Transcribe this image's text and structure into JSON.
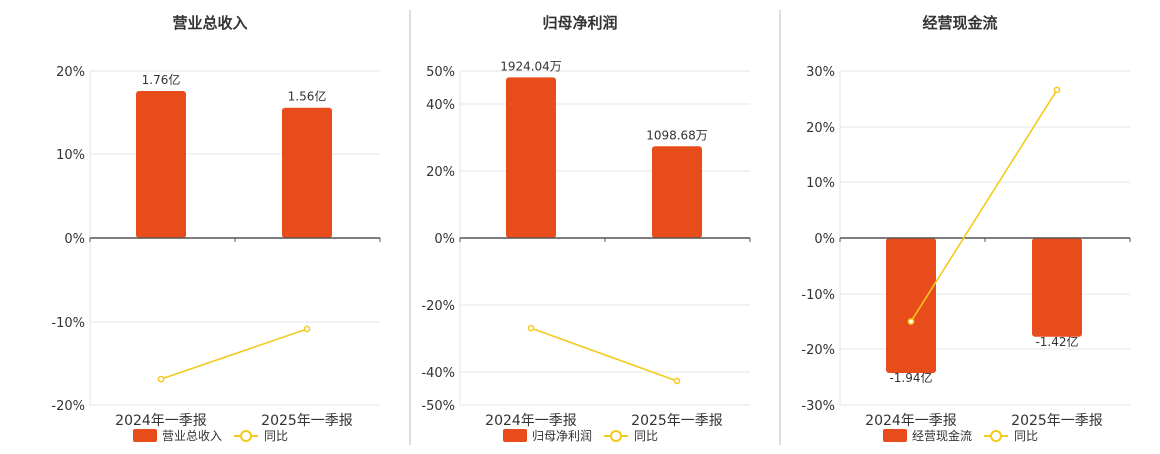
{
  "chart_data": [
    {
      "type": "bar+line",
      "title": "营业总收入",
      "categories": [
        "2024年一季报",
        "2025年一季报"
      ],
      "bar_series": {
        "name": "营业总收入",
        "values": [
          1.76,
          1.56
        ],
        "unit": "亿",
        "labels": [
          "1.76亿",
          "1.56亿"
        ]
      },
      "line_series": {
        "name": "同比",
        "values": [
          -16.9,
          -10.9
        ],
        "unit": "%"
      },
      "y_ticks": [
        "20%",
        "10%",
        "0%",
        "-10%",
        "-20%"
      ],
      "ylim": [
        -20,
        20
      ],
      "bar_ylim": [
        -2.0,
        2.0
      ],
      "legend": "bottom",
      "grid": true
    },
    {
      "type": "bar+line",
      "title": "归母净利润",
      "categories": [
        "2024年一季报",
        "2025年一季报"
      ],
      "bar_series": {
        "name": "归母净利润",
        "values": [
          1924.04,
          1098.68
        ],
        "unit": "万",
        "labels": [
          "1924.04万",
          "1098.68万"
        ]
      },
      "line_series": {
        "name": "同比",
        "values": [
          -27,
          -42.8
        ],
        "unit": "%"
      },
      "y_ticks": [
        "50%",
        "40%",
        "20%",
        "0%",
        "-20%",
        "-40%",
        "-50%"
      ],
      "ylim": [
        -50,
        50
      ],
      "bar_ylim": [
        -2000,
        2000
      ],
      "legend": "bottom",
      "grid": true
    },
    {
      "type": "bar+line",
      "title": "经营现金流",
      "categories": [
        "2024年一季报",
        "2025年一季报"
      ],
      "bar_series": {
        "name": "经营现金流",
        "values": [
          -1.94,
          -1.42
        ],
        "unit": "亿",
        "labels": [
          "-1.94亿",
          "-1.42亿"
        ]
      },
      "line_series": {
        "name": "同比",
        "values": [
          -15,
          26.6
        ],
        "unit": "%"
      },
      "y_ticks": [
        "30%",
        "20%",
        "10%",
        "0%",
        "-10%",
        "-20%",
        "-30%"
      ],
      "ylim": [
        -30,
        30
      ],
      "bar_ylim": [
        -2.4,
        2.4
      ],
      "legend": "bottom",
      "grid": true
    }
  ],
  "colors": {
    "bar": "#e84c1a",
    "line": "#f2cb1d",
    "grid": "#e6e6e6",
    "axis": "#555555",
    "divider": "#bbbbbb",
    "text": "#333333"
  }
}
